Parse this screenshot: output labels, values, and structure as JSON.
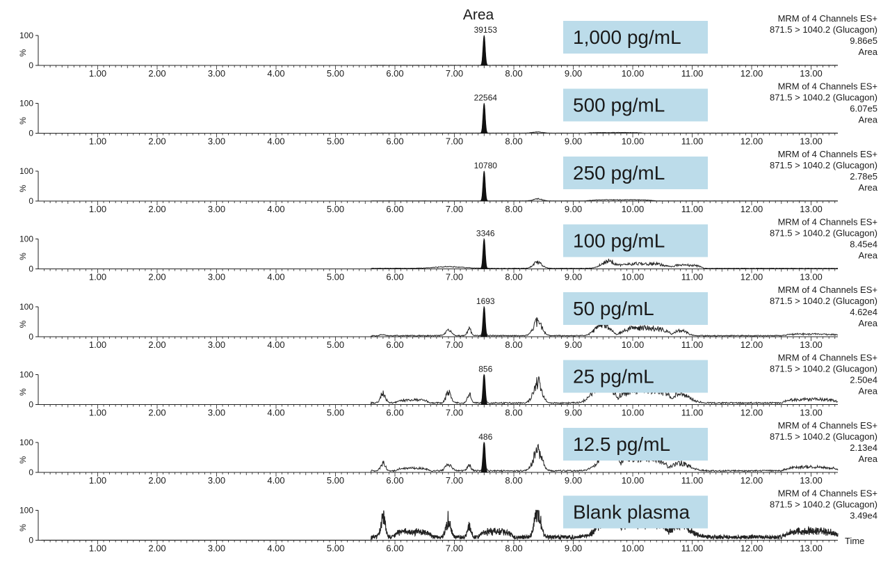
{
  "chart_data": {
    "type": "line",
    "heading": "Area",
    "xlabel": "Time",
    "xlim": [
      0.0,
      13.45
    ],
    "x_ticks": [
      "1.00",
      "2.00",
      "3.00",
      "4.00",
      "5.00",
      "6.00",
      "7.00",
      "8.00",
      "9.00",
      "10.00",
      "11.00",
      "12.00",
      "13.00"
    ],
    "y_ticks": [
      "100",
      "0"
    ],
    "y_unit": "%",
    "colors": {
      "trace": "#222222",
      "label_box": "#bcdcea"
    },
    "panels": [
      {
        "concentration": "1,000 pg/mL",
        "channel": "MRM of 4 Channels ES+",
        "transition": "871.5 > 1040.2 (Glucagon)",
        "intensity": "9.86e5",
        "mode": "Area",
        "peak_label": "39153",
        "peak_rt": 7.5,
        "noise": [],
        "baseline": 0.4
      },
      {
        "concentration": "500 pg/mL",
        "channel": "MRM of 4 Channels ES+",
        "transition": "871.5 > 1040.2 (Glucagon)",
        "intensity": "6.07e5",
        "mode": "Area",
        "peak_label": "22564",
        "peak_rt": 7.5,
        "noise": [
          [
            8.4,
            4,
            0.08
          ],
          [
            9.7,
            2,
            0.5
          ]
        ],
        "baseline": 0.5
      },
      {
        "concentration": "250 pg/mL",
        "channel": "MRM of 4 Channels ES+",
        "transition": "871.5 > 1040.2 (Glucagon)",
        "intensity": "2.78e5",
        "mode": "Area",
        "peak_label": "10780",
        "peak_rt": 7.5,
        "noise": [
          [
            8.4,
            8,
            0.07
          ],
          [
            9.8,
            4,
            0.6
          ]
        ],
        "baseline": 0.7
      },
      {
        "concentration": "100 pg/mL",
        "channel": "MRM of 4 Channels ES+",
        "transition": "871.5 > 1040.2 (Glucagon)",
        "intensity": "8.45e4",
        "mode": "Area",
        "peak_label": "3346",
        "peak_rt": 7.5,
        "noise": [
          [
            6.9,
            6,
            0.25
          ],
          [
            8.4,
            24,
            0.07
          ],
          [
            9.6,
            28,
            0.12
          ],
          [
            10.2,
            18,
            0.45
          ],
          [
            10.9,
            12,
            0.3
          ]
        ],
        "baseline": 2
      },
      {
        "concentration": "50 pg/mL",
        "channel": "MRM of 4 Channels ES+",
        "transition": "871.5 > 1040.2 (Glucagon)",
        "intensity": "4.62e4",
        "mode": "Area",
        "peak_label": "1693",
        "peak_rt": 7.5,
        "noise": [
          [
            5.8,
            4,
            0.04
          ],
          [
            6.9,
            22,
            0.05
          ],
          [
            7.25,
            28,
            0.03
          ],
          [
            8.4,
            55,
            0.07
          ],
          [
            9.5,
            45,
            0.12
          ],
          [
            10.2,
            30,
            0.45
          ],
          [
            10.8,
            20,
            0.1
          ],
          [
            13.0,
            6,
            0.5
          ]
        ],
        "baseline": 4
      },
      {
        "concentration": "25 pg/mL",
        "channel": "MRM of 4 Channels ES+",
        "transition": "871.5 > 1040.2 (Glucagon)",
        "intensity": "2.50e4",
        "mode": "Area",
        "peak_label": "856",
        "peak_rt": 7.5,
        "noise": [
          [
            5.8,
            38,
            0.04
          ],
          [
            6.3,
            12,
            0.3
          ],
          [
            6.9,
            44,
            0.04
          ],
          [
            7.25,
            32,
            0.03
          ],
          [
            8.4,
            80,
            0.07
          ],
          [
            9.5,
            85,
            0.15
          ],
          [
            10.2,
            50,
            0.45
          ],
          [
            10.8,
            35,
            0.15
          ],
          [
            13.0,
            14,
            0.5
          ]
        ],
        "baseline": 6
      },
      {
        "concentration": "12.5 pg/mL",
        "channel": "MRM of 4 Channels ES+",
        "transition": "871.5 > 1040.2 (Glucagon)",
        "intensity": "2.13e4",
        "mode": "Area",
        "peak_label": "486",
        "peak_rt": 7.5,
        "noise": [
          [
            5.8,
            30,
            0.04
          ],
          [
            6.3,
            10,
            0.3
          ],
          [
            6.9,
            28,
            0.05
          ],
          [
            7.25,
            22,
            0.03
          ],
          [
            8.4,
            80,
            0.07
          ],
          [
            9.6,
            82,
            0.15
          ],
          [
            10.2,
            50,
            0.4
          ],
          [
            10.8,
            30,
            0.15
          ],
          [
            13.0,
            14,
            0.5
          ]
        ],
        "baseline": 6
      },
      {
        "concentration": "Blank plasma",
        "channel": "MRM of 4 Channels ES+",
        "transition": "871.5 > 1040.2 (Glucagon)",
        "intensity": "3.49e4",
        "mode": "",
        "peak_label": "",
        "peak_rt": null,
        "noise": [
          [
            5.8,
            62,
            0.04
          ],
          [
            6.3,
            18,
            0.35
          ],
          [
            6.9,
            58,
            0.04
          ],
          [
            7.25,
            36,
            0.03
          ],
          [
            7.7,
            18,
            0.3
          ],
          [
            8.4,
            85,
            0.05
          ],
          [
            9.6,
            90,
            0.15
          ],
          [
            10.2,
            55,
            0.4
          ],
          [
            10.8,
            48,
            0.15
          ],
          [
            13.0,
            20,
            0.5
          ]
        ],
        "baseline": 8,
        "jagged": true
      }
    ]
  }
}
